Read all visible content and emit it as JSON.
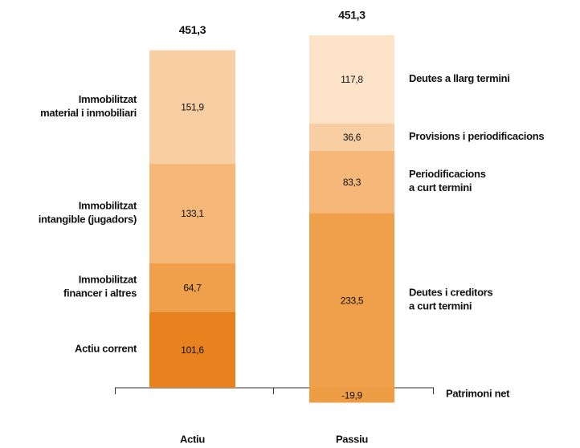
{
  "chart_data": {
    "type": "stacked-bar",
    "stacks": [
      {
        "name": "Actiu",
        "total": 451.3,
        "total_label": "451,3",
        "segments": [
          {
            "name": [
              "Actiu corrent"
            ],
            "value": 101.6,
            "value_label": "101,6",
            "color": "#e8821e"
          },
          {
            "name": [
              "Immobilitzat",
              "financer i altres"
            ],
            "value": 64.7,
            "value_label": "64,7",
            "color": "#f0a04b"
          },
          {
            "name": [
              "Immobilitzat",
              "intangible (jugadors)"
            ],
            "value": 133.1,
            "value_label": "133,1",
            "color": "#f5b878"
          },
          {
            "name": [
              "Immobilitzat",
              "material i inmobiliari"
            ],
            "value": 151.9,
            "value_label": "151,9",
            "color": "#f8cfa2"
          }
        ]
      },
      {
        "name": "Passiu",
        "total": 451.3,
        "total_label": "451,3",
        "segments": [
          {
            "name": [
              "Patrimoni net"
            ],
            "value": -19.9,
            "value_label": "-19,9",
            "color": "#ef9d45"
          },
          {
            "name": [
              "Deutes i creditors",
              "a curt termini"
            ],
            "value": 233.5,
            "value_label": "233,5",
            "color": "#f0a04b"
          },
          {
            "name": [
              "Periodificacions",
              "a curt termini"
            ],
            "value": 83.3,
            "value_label": "83,3",
            "color": "#f5b878"
          },
          {
            "name": [
              "Provisions i periodificacions"
            ],
            "value": 36.6,
            "value_label": "36,6",
            "color": "#f8cfa2"
          },
          {
            "name": [
              "Deutes a llarg termini"
            ],
            "value": 117.8,
            "value_label": "117,8",
            "color": "#fde3c8"
          }
        ]
      }
    ]
  }
}
